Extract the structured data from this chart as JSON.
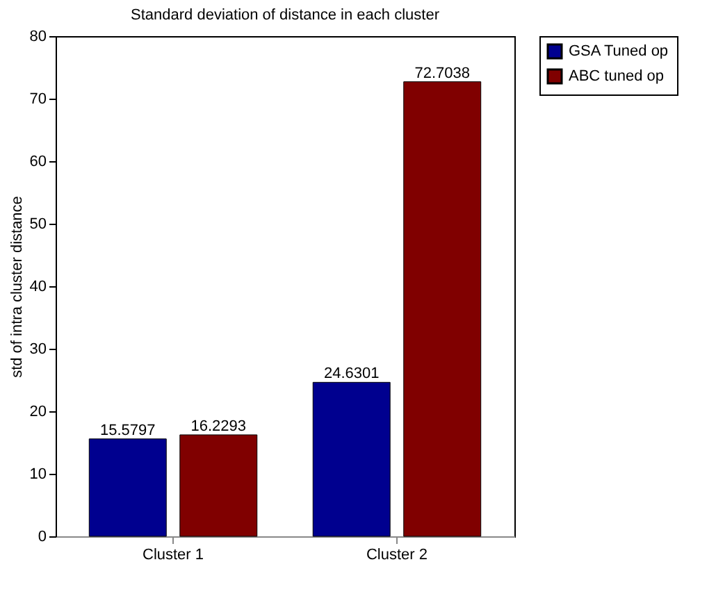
{
  "chart_data": {
    "type": "bar",
    "title": "Standard deviation of distance in each cluster",
    "ylabel": "std of intra cluster distance",
    "categories": [
      "Cluster 1",
      "Cluster 2"
    ],
    "series": [
      {
        "name": "GSA Tuned op",
        "color": "#00008f",
        "values": [
          15.5797,
          24.6301
        ]
      },
      {
        "name": "ABC tuned op",
        "color": "#800000",
        "values": [
          16.2293,
          72.7038
        ]
      }
    ],
    "ylim": [
      0,
      80
    ],
    "yticks": [
      0,
      10,
      20,
      30,
      40,
      50,
      60,
      70,
      80
    ],
    "grid": false,
    "legend": "top right",
    "data_labels": true
  }
}
